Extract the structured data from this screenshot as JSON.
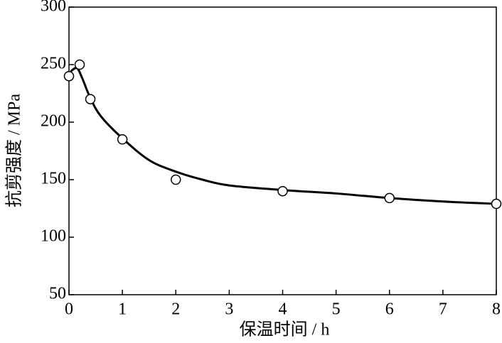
{
  "chart_data": {
    "type": "scatter",
    "xlabel": "保温时间 / h",
    "ylabel": "抗剪强度 / MPa",
    "xlim": [
      0,
      8
    ],
    "xticks": [
      0,
      1,
      2,
      3,
      4,
      5,
      6,
      7,
      8
    ],
    "ylim": [
      50,
      300
    ],
    "yticks": [
      50,
      100,
      150,
      200,
      250,
      300
    ],
    "color": "#000000",
    "points": {
      "x": [
        0,
        0.2,
        0.4,
        1,
        2,
        4,
        6,
        8
      ],
      "values": [
        240,
        250,
        220,
        185,
        150,
        140,
        134,
        129
      ]
    },
    "curve": {
      "x": [
        0.03,
        0.15,
        0.25,
        0.4,
        0.6,
        1,
        1.5,
        2,
        2.5,
        3,
        4,
        5,
        6,
        7,
        8
      ],
      "values": [
        244,
        247,
        238,
        221,
        205,
        186,
        167,
        157,
        150,
        145,
        141,
        138,
        134,
        131,
        129
      ]
    }
  }
}
